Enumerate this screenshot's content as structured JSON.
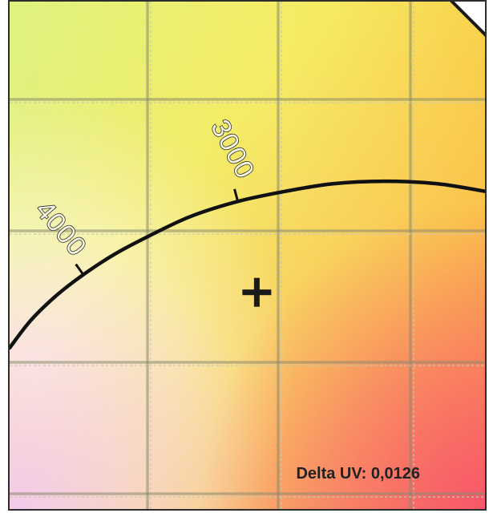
{
  "chart_data": {
    "type": "line",
    "subtype": "cie-chromaticity-planckian-locus",
    "title": "",
    "xlabel": "",
    "ylabel": "",
    "grid": true,
    "series": [
      {
        "values": [
          {
            "x": 0.0,
            "y": 0.0
          },
          {
            "x": 0.045,
            "y": 0.055
          },
          {
            "x": 0.1,
            "y": 0.105
          },
          {
            "x": 0.155,
            "y": 0.145
          },
          {
            "x": 0.22,
            "y": 0.185
          },
          {
            "x": 0.29,
            "y": 0.22
          },
          {
            "x": 0.38,
            "y": 0.26
          },
          {
            "x": 0.48,
            "y": 0.29
          },
          {
            "x": 0.58,
            "y": 0.31
          },
          {
            "x": 0.68,
            "y": 0.325
          },
          {
            "x": 0.79,
            "y": 0.33
          },
          {
            "x": 0.9,
            "y": 0.325
          },
          {
            "x": 1.0,
            "y": 0.31
          }
        ]
      }
    ],
    "ticks": [
      {
        "label": "4000",
        "at": 0.155
      },
      {
        "label": "3000",
        "at": 0.48
      }
    ],
    "marker": {
      "symbol": "+",
      "x": 0.52,
      "y": 0.11
    },
    "readout": {
      "label": "Delta UV: 0,0126"
    }
  }
}
